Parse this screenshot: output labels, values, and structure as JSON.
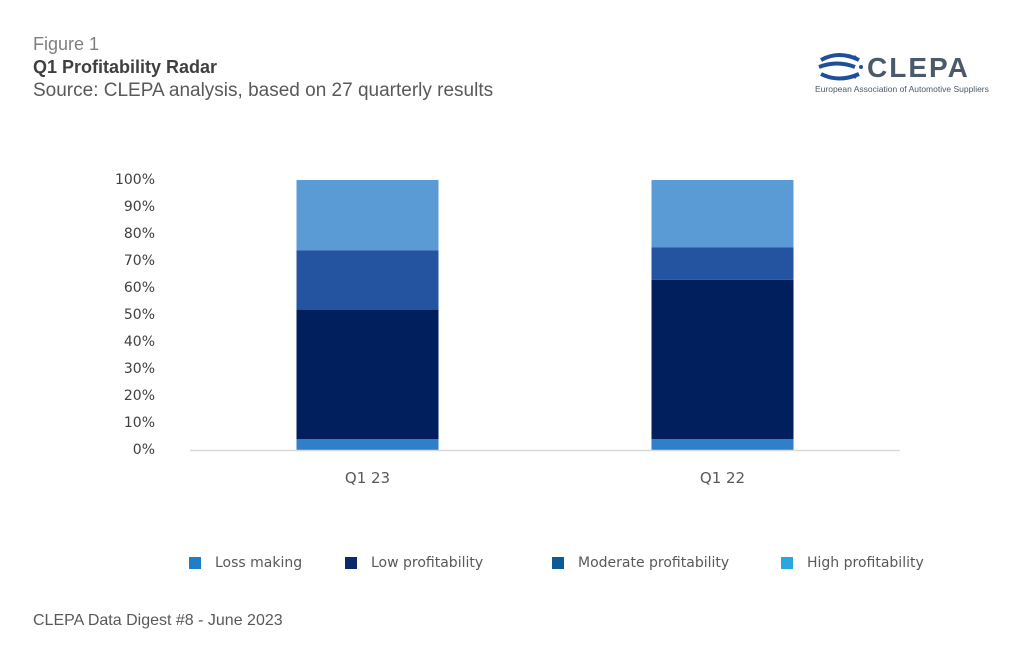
{
  "header": {
    "figure_label": "Figure 1",
    "title": "Q1 Profitability Radar",
    "source": "Source:  CLEPA analysis, based on 27 quarterly results"
  },
  "logo": {
    "name": "CLEPA",
    "tagline": "European Association of Automotive Suppliers"
  },
  "chart_data": {
    "type": "bar",
    "stacked": true,
    "categories": [
      "Q1 23",
      "Q1 22"
    ],
    "series": [
      {
        "name": "Loss making",
        "values": [
          4,
          4
        ],
        "color": "#2f7fc9"
      },
      {
        "name": "Low profitability",
        "values": [
          48,
          59
        ],
        "color": "#001f5c"
      },
      {
        "name": "Moderate profitability",
        "values": [
          22,
          12
        ],
        "color": "#2453a0"
      },
      {
        "name": "High profitability",
        "values": [
          26,
          25
        ],
        "color": "#5b9bd5"
      }
    ],
    "legend_colors": [
      "#1f7ec9",
      "#0a2a6b",
      "#0d5a96",
      "#2aa7e0"
    ],
    "yticks": [
      "0%",
      "10%",
      "20%",
      "30%",
      "40%",
      "50%",
      "60%",
      "70%",
      "80%",
      "90%",
      "100%"
    ],
    "ylim": [
      0,
      100
    ],
    "legend_position": "bottom",
    "grid": false
  },
  "footer": {
    "text": "CLEPA Data Digest #8 - June 2023"
  }
}
